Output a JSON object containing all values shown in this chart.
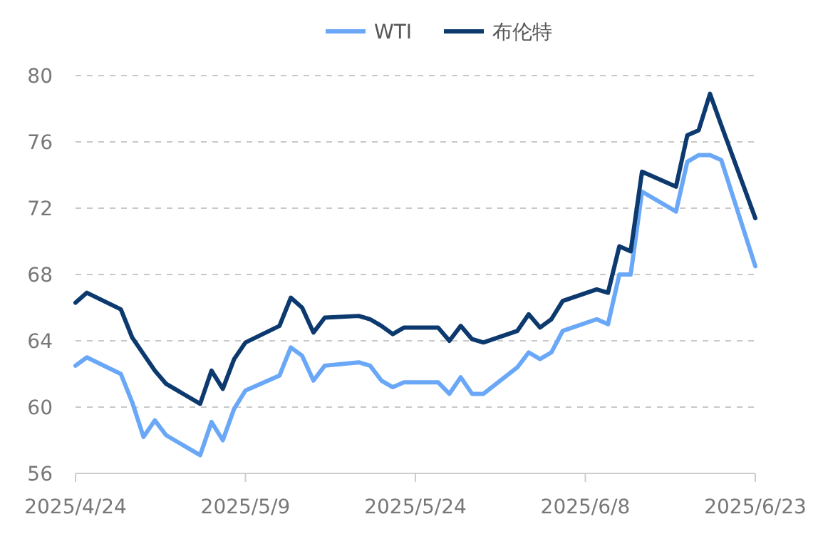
{
  "chart_data": {
    "type": "line",
    "x": [
      "2025-04-24",
      "2025-04-25",
      "2025-04-28",
      "2025-04-29",
      "2025-04-30",
      "2025-05-01",
      "2025-05-02",
      "2025-05-05",
      "2025-05-06",
      "2025-05-07",
      "2025-05-08",
      "2025-05-09",
      "2025-05-12",
      "2025-05-13",
      "2025-05-14",
      "2025-05-15",
      "2025-05-16",
      "2025-05-19",
      "2025-05-20",
      "2025-05-21",
      "2025-05-22",
      "2025-05-23",
      "2025-05-26",
      "2025-05-27",
      "2025-05-28",
      "2025-05-29",
      "2025-05-30",
      "2025-06-02",
      "2025-06-03",
      "2025-06-04",
      "2025-06-05",
      "2025-06-06",
      "2025-06-09",
      "2025-06-10",
      "2025-06-11",
      "2025-06-12",
      "2025-06-13",
      "2025-06-16",
      "2025-06-17",
      "2025-06-18",
      "2025-06-19",
      "2025-06-20",
      "2025-06-23"
    ],
    "series": [
      {
        "name": "WTI",
        "color": "#6aa8f7",
        "values": [
          62.5,
          63.0,
          62.0,
          60.3,
          58.2,
          59.2,
          58.3,
          57.1,
          59.1,
          58.0,
          59.9,
          61.0,
          61.9,
          63.6,
          63.1,
          61.6,
          62.5,
          62.7,
          62.5,
          61.6,
          61.2,
          61.5,
          61.5,
          60.8,
          61.8,
          60.8,
          60.8,
          62.4,
          63.3,
          62.9,
          63.3,
          64.6,
          65.3,
          65.0,
          68.0,
          68.0,
          73.0,
          71.8,
          74.8,
          75.2,
          75.2,
          74.9,
          68.5
        ]
      },
      {
        "name": "布伦特",
        "color": "#0d3a6e",
        "values": [
          66.3,
          66.9,
          65.9,
          64.2,
          63.2,
          62.2,
          61.4,
          60.2,
          62.2,
          61.1,
          62.9,
          63.9,
          64.9,
          66.6,
          66.0,
          64.5,
          65.4,
          65.5,
          65.3,
          64.9,
          64.4,
          64.8,
          64.8,
          64.0,
          64.9,
          64.1,
          63.9,
          64.6,
          65.6,
          64.8,
          65.3,
          66.4,
          67.1,
          66.9,
          69.7,
          69.4,
          74.2,
          73.3,
          76.4,
          76.7,
          78.9,
          77.0,
          71.4
        ]
      }
    ],
    "xlim": [
      "2025-04-24",
      "2025-06-23"
    ],
    "xticks": [
      {
        "value": "2025-04-24",
        "label": "2025/4/24"
      },
      {
        "value": "2025-05-09",
        "label": "2025/5/9"
      },
      {
        "value": "2025-05-24",
        "label": "2025/5/24"
      },
      {
        "value": "2025-06-08",
        "label": "2025/6/8"
      },
      {
        "value": "2025-06-23",
        "label": "2025/6/23"
      }
    ],
    "ylim": [
      56,
      80
    ],
    "yticks": [
      56,
      60,
      64,
      68,
      72,
      76,
      80
    ],
    "grid": "y",
    "legend": "top",
    "marker": "none",
    "line_style": "solid"
  }
}
